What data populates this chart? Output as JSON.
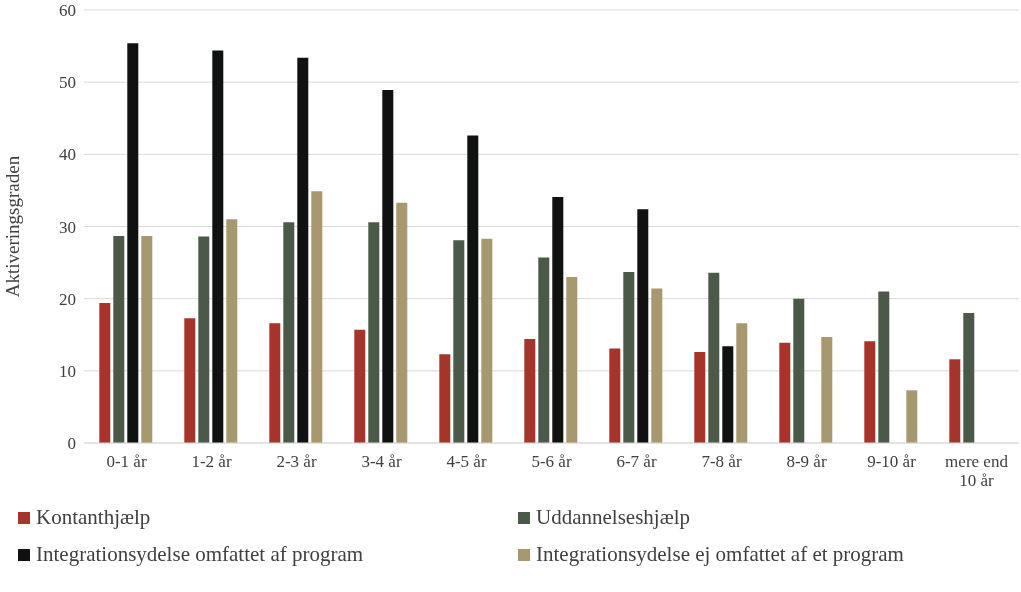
{
  "chart_data": {
    "type": "bar",
    "ylabel": "Aktiveringsgraden",
    "categories": [
      "0-1 år",
      "1-2 år",
      "2-3 år",
      "3-4 år",
      "4-5 år",
      "5-6 år",
      "6-7 år",
      "7-8 år",
      "8-9 år",
      "9-10 år",
      "mere end 10 år"
    ],
    "series": [
      {
        "name": "Kontanthjælp",
        "color": "#a5352a",
        "values": [
          19.4,
          17.3,
          16.6,
          15.7,
          12.3,
          14.4,
          13.1,
          12.6,
          13.9,
          14.1,
          11.6
        ]
      },
      {
        "name": "Uddannelseshjælp",
        "color": "#4b5a48",
        "values": [
          28.7,
          28.6,
          30.6,
          30.6,
          28.1,
          25.7,
          23.7,
          23.6,
          20.0,
          21.0,
          18.0
        ]
      },
      {
        "name": "Integrationsydelse omfattet af program",
        "color": "#0f1210",
        "values": [
          55.4,
          54.4,
          53.4,
          48.9,
          42.6,
          34.1,
          32.4,
          13.4,
          null,
          null,
          null
        ]
      },
      {
        "name": "Integrationsydelse ej omfattet af et program",
        "color": "#a8986f",
        "values": [
          28.7,
          31.0,
          34.9,
          33.3,
          28.3,
          23.0,
          21.4,
          16.6,
          14.7,
          7.3,
          null
        ]
      }
    ],
    "ylim": [
      0,
      60
    ],
    "yticks": [
      0,
      10,
      20,
      30,
      40,
      50,
      60
    ],
    "grid": "y",
    "legend": "bottom"
  }
}
